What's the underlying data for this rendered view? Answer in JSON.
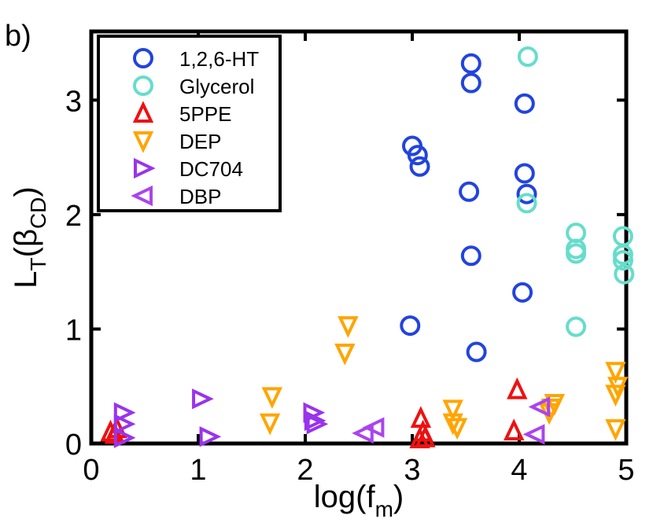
{
  "panel_label": "b)",
  "chart_data": {
    "type": "scatter",
    "title": "",
    "xlabel": "log(f_m)",
    "ylabel": "L_T(β_CD)",
    "xlabel_parts": {
      "base": "log(f",
      "sub": "m",
      "tail": ")"
    },
    "ylabel_parts": {
      "base": "L",
      "sub1": "T",
      "mid": "(β",
      "sub2": "CD",
      "tail": ")"
    },
    "xlim": [
      0,
      5
    ],
    "ylim": [
      0,
      3.6
    ],
    "xticks": [
      0,
      1,
      2,
      3,
      4,
      5
    ],
    "yticks": [
      0,
      1,
      2,
      3
    ],
    "legend_position": "top-left",
    "series": [
      {
        "name": "1,2,6-HT",
        "marker": "circle",
        "color": "#2244dd",
        "points": [
          [
            3.0,
            2.6
          ],
          [
            3.05,
            2.52
          ],
          [
            3.07,
            2.42
          ],
          [
            2.98,
            1.03
          ],
          [
            3.55,
            3.32
          ],
          [
            3.55,
            3.15
          ],
          [
            3.53,
            2.2
          ],
          [
            3.55,
            1.64
          ],
          [
            3.6,
            0.8
          ],
          [
            4.05,
            2.97
          ],
          [
            4.05,
            2.36
          ],
          [
            4.07,
            2.18
          ],
          [
            4.03,
            1.32
          ]
        ]
      },
      {
        "name": "Glycerol",
        "marker": "circle",
        "color": "#66ddcc",
        "points": [
          [
            4.08,
            3.38
          ],
          [
            4.07,
            2.1
          ],
          [
            4.53,
            1.84
          ],
          [
            4.53,
            1.7
          ],
          [
            4.53,
            1.66
          ],
          [
            4.53,
            1.02
          ],
          [
            4.97,
            1.81
          ],
          [
            4.97,
            1.65
          ],
          [
            4.97,
            1.6
          ],
          [
            4.98,
            1.48
          ]
        ]
      },
      {
        "name": "5PPE",
        "marker": "triangle-up",
        "color": "#ee1111",
        "points": [
          [
            0.18,
            0.1
          ],
          [
            0.22,
            0.08
          ],
          [
            0.24,
            0.13
          ],
          [
            3.08,
            0.22
          ],
          [
            3.1,
            0.1
          ],
          [
            3.12,
            0.05
          ],
          [
            3.07,
            0.04
          ],
          [
            3.98,
            0.47
          ],
          [
            3.95,
            0.11
          ]
        ]
      },
      {
        "name": "DEP",
        "marker": "triangle-down",
        "color": "#ffa500",
        "points": [
          [
            2.4,
            1.03
          ],
          [
            2.37,
            0.79
          ],
          [
            1.69,
            0.41
          ],
          [
            1.67,
            0.18
          ],
          [
            3.38,
            0.3
          ],
          [
            3.38,
            0.18
          ],
          [
            3.42,
            0.14
          ],
          [
            4.28,
            0.27
          ],
          [
            4.33,
            0.35
          ],
          [
            4.3,
            0.31
          ],
          [
            4.9,
            0.63
          ],
          [
            4.92,
            0.5
          ],
          [
            4.9,
            0.43
          ],
          [
            4.9,
            0.13
          ]
        ]
      },
      {
        "name": "DC704",
        "marker": "triangle-right",
        "color": "#9933ee",
        "points": [
          [
            0.3,
            0.27
          ],
          [
            0.3,
            0.17
          ],
          [
            0.3,
            0.05
          ],
          [
            1.03,
            0.39
          ],
          [
            1.1,
            0.06
          ],
          [
            2.07,
            0.27
          ],
          [
            2.08,
            0.2
          ],
          [
            2.1,
            0.17
          ]
        ]
      },
      {
        "name": "DBP",
        "marker": "triangle-left",
        "color": "#aa44ee",
        "points": [
          [
            2.55,
            0.09
          ],
          [
            2.65,
            0.14
          ],
          [
            4.2,
            0.32
          ],
          [
            4.15,
            0.08
          ]
        ]
      }
    ]
  }
}
